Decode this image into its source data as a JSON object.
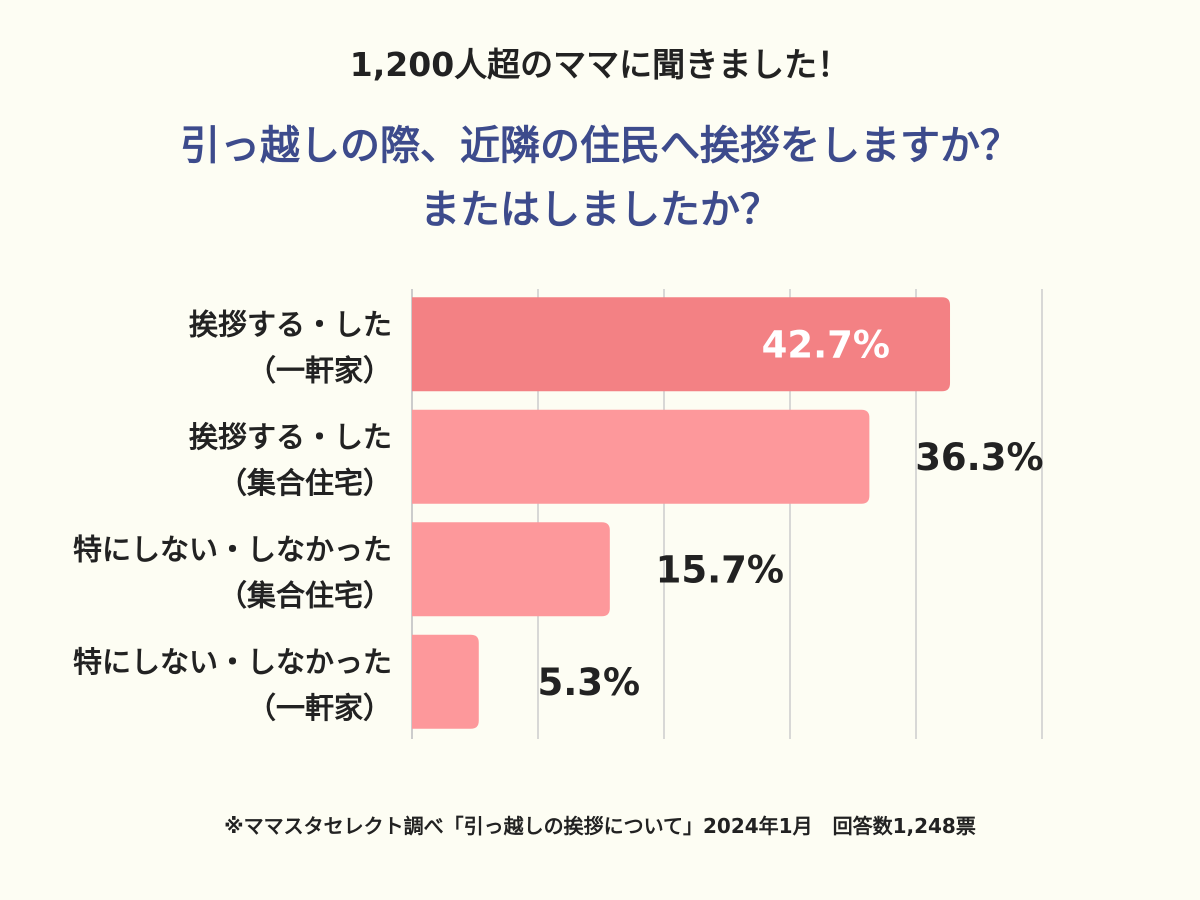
{
  "chart_data": {
    "type": "bar",
    "orientation": "horizontal",
    "subtitle": "1,200人超のママに聞きました！",
    "title_lines": [
      "引っ越しの際、近隣の住民へ挨拶をしますか？",
      "またはしましたか？"
    ],
    "categories": [
      [
        "挨拶する・した",
        "（一軒家）"
      ],
      [
        "挨拶する・した",
        "（集合住宅）"
      ],
      [
        "特にしない・しなかった",
        "（集合住宅）"
      ],
      [
        "特にしない・しなかった",
        "（一軒家）"
      ]
    ],
    "values": [
      42.7,
      36.3,
      15.7,
      5.3
    ],
    "value_labels": [
      "42.7%",
      "36.3%",
      "15.7%",
      "5.3%"
    ],
    "xlim": [
      0,
      50
    ],
    "grid": true,
    "colors": {
      "highlight": "#f38184",
      "bar": "#fd989b",
      "grid": "#cccccc",
      "label_inside": "#ffffff",
      "label_outside": "#222222"
    },
    "footnote": "※ママスタセレクト調べ「引っ越しの挨拶について」2024年1月　回答数1,248票"
  }
}
